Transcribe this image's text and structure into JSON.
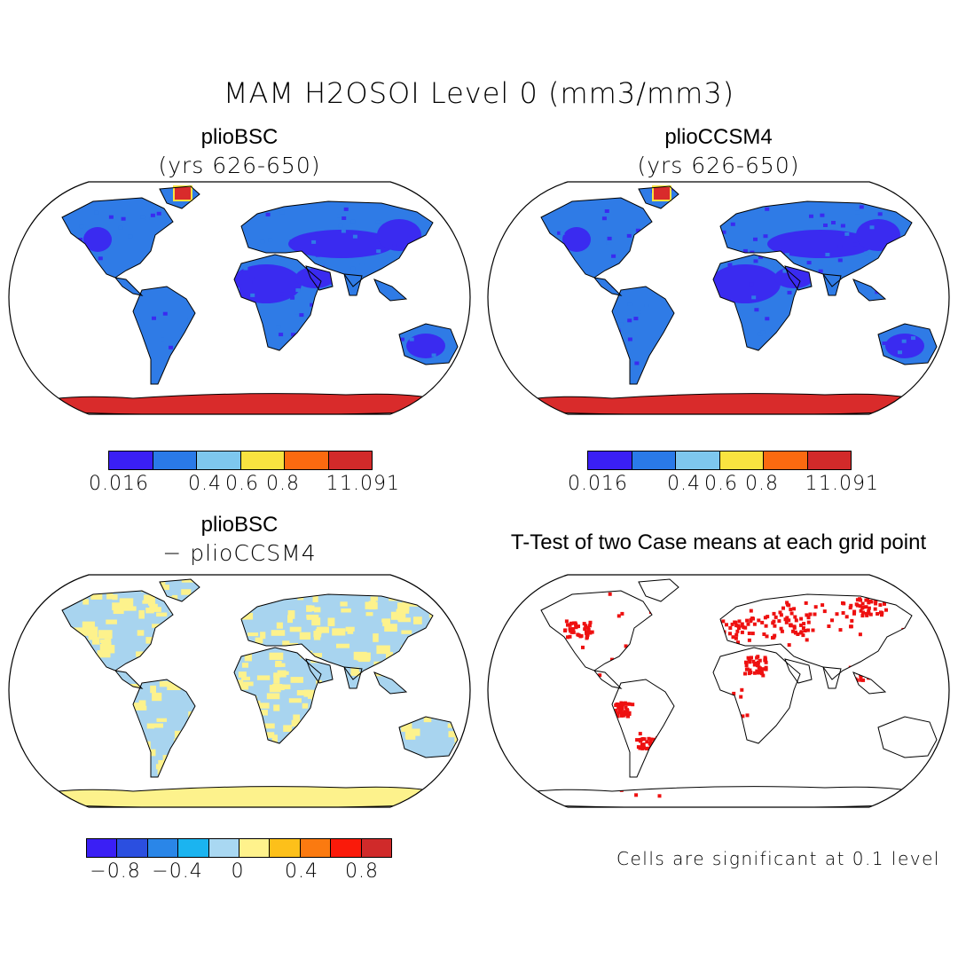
{
  "figure_title": "MAM H2OSOI Level 0 (mm3/mm3)",
  "colors": {
    "land_low": "#3a2bf0",
    "land_mid": "#2f7be6",
    "antarctic": "#d92b2b",
    "diff_dry": "#fdf28c",
    "diff_wet": "#a8d4ef",
    "signif": "#ee1010",
    "outline": "#000000"
  },
  "panels": [
    {
      "title": "plioBSC",
      "subtitle": "(yrs 626-650)"
    },
    {
      "title": "plioCCSM4",
      "subtitle": "(yrs 626-650)"
    },
    {
      "title": "plioBSC",
      "subtitle": "− plioCCSM4"
    },
    {
      "title": "T-Test of two Case means at each grid point"
    }
  ],
  "colorbar_abs": {
    "colors": [
      "#3a1ff5",
      "#2a7ae8",
      "#7ec7ee",
      "#f9e340",
      "#fb6a10",
      "#d22a2a"
    ],
    "labels": [
      "0.016",
      "0.4",
      "0.6",
      "0.8",
      "1",
      "1.091"
    ]
  },
  "colorbar_diff": {
    "colors": [
      "#3a1ff5",
      "#2b4fe0",
      "#2a86e8",
      "#1bb4f0",
      "#a9d8f2",
      "#fff28c",
      "#fdc01a",
      "#fb7a10",
      "#fa1a0a",
      "#d02a2a"
    ],
    "labels": [
      "−0.8",
      "−0.4",
      "0",
      "0.4",
      "0.8"
    ]
  },
  "footnote": "Cells are significant at 0.1 level"
}
